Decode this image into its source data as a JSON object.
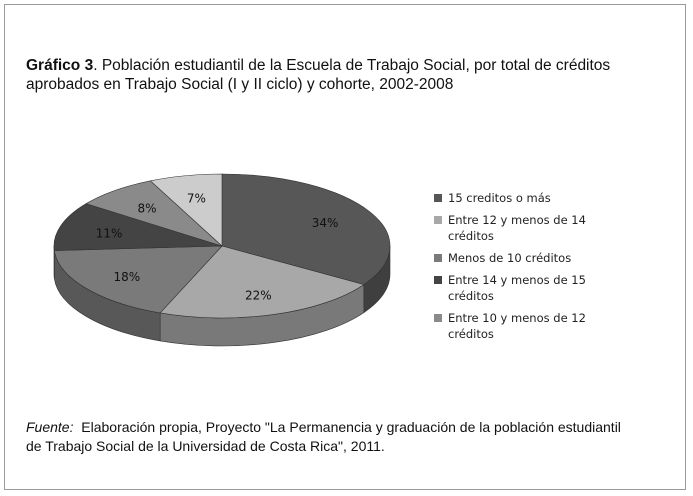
{
  "chart_data": {
    "type": "pie",
    "title_prefix": "Gráfico 3",
    "title": ". Población estudiantil de la Escuela de Trabajo Social, por total de créditos aprobados en Trabajo Social (I y II ciclo) y cohorte, 2002-2008",
    "categories": [
      "15 creditos o más",
      "Entre 12 y menos de 14 créditos",
      "Menos de 10 créditos",
      "Entre 14 y menos de 15 créditos",
      "Entre 10 y menos de 12 créditos",
      null
    ],
    "values": [
      34,
      22,
      18,
      11,
      8,
      7
    ],
    "value_labels": [
      "34%",
      "22%",
      "18%",
      "11%",
      "8%",
      "7%"
    ],
    "colors": [
      "#575757",
      "#a8a8a8",
      "#7a7a7a",
      "#444444",
      "#8a8a8a",
      "#cccccc"
    ],
    "source_label": "Fuente:",
    "source": "Elaboración propia, Proyecto \"La Permanencia y graduación de la población estudiantil de Trabajo Social de la Universidad de Costa Rica\", 2011."
  }
}
